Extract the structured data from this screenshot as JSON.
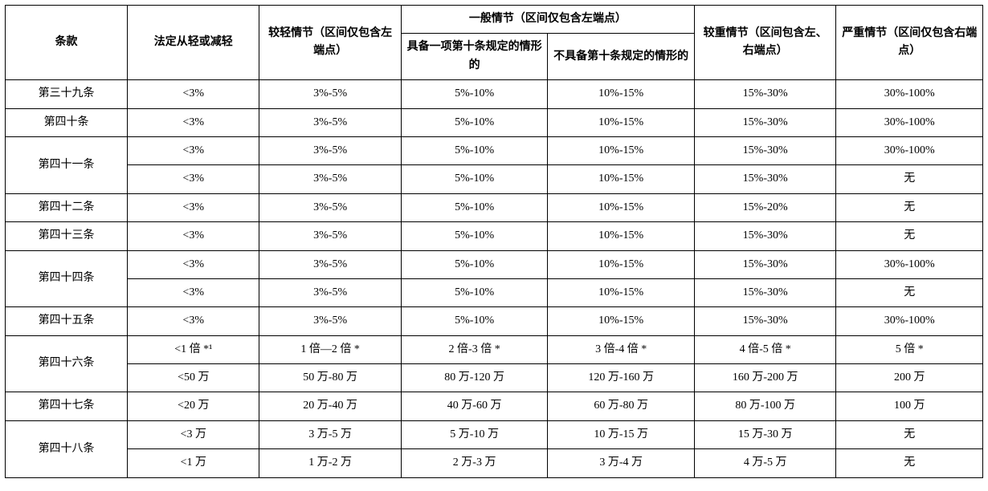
{
  "header": {
    "c1": "条款",
    "c2": "法定从轻或减轻",
    "c3": "较轻情节（区间仅包含左端点）",
    "c4_top": "一般情节（区间仅包含左端点）",
    "c4a": "具备一项第十条规定的情形的",
    "c4b": "不具备第十条规定的情形的",
    "c5": "较重情节（区间包含左、右端点）",
    "c6": "严重情节（区间仅包含右端点）"
  },
  "rows": [
    {
      "label": "第三十九条",
      "span": 1,
      "cells": [
        [
          "<3%",
          "3%-5%",
          "5%-10%",
          "10%-15%",
          "15%-30%",
          "30%-100%"
        ]
      ]
    },
    {
      "label": "第四十条",
      "span": 1,
      "cells": [
        [
          "<3%",
          "3%-5%",
          "5%-10%",
          "10%-15%",
          "15%-30%",
          "30%-100%"
        ]
      ]
    },
    {
      "label": "第四十一条",
      "span": 2,
      "cells": [
        [
          "<3%",
          "3%-5%",
          "5%-10%",
          "10%-15%",
          "15%-30%",
          "30%-100%"
        ],
        [
          "<3%",
          "3%-5%",
          "5%-10%",
          "10%-15%",
          "15%-30%",
          "无"
        ]
      ]
    },
    {
      "label": "第四十二条",
      "span": 1,
      "cells": [
        [
          "<3%",
          "3%-5%",
          "5%-10%",
          "10%-15%",
          "15%-20%",
          "无"
        ]
      ]
    },
    {
      "label": "第四十三条",
      "span": 1,
      "cells": [
        [
          "<3%",
          "3%-5%",
          "5%-10%",
          "10%-15%",
          "15%-30%",
          "无"
        ]
      ]
    },
    {
      "label": "第四十四条",
      "span": 2,
      "cells": [
        [
          "<3%",
          "3%-5%",
          "5%-10%",
          "10%-15%",
          "15%-30%",
          "30%-100%"
        ],
        [
          "<3%",
          "3%-5%",
          "5%-10%",
          "10%-15%",
          "15%-30%",
          "无"
        ]
      ]
    },
    {
      "label": "第四十五条",
      "span": 1,
      "cells": [
        [
          "<3%",
          "3%-5%",
          "5%-10%",
          "10%-15%",
          "15%-30%",
          "30%-100%"
        ]
      ]
    },
    {
      "label": "第四十六条",
      "span": 2,
      "cells": [
        [
          "<1 倍 *¹",
          "1 倍—2 倍 *",
          "2 倍-3 倍 *",
          "3 倍-4 倍 *",
          "4 倍-5 倍 *",
          "5 倍 *"
        ],
        [
          "<50 万",
          "50 万-80 万",
          "80 万-120 万",
          "120 万-160 万",
          "160 万-200 万",
          "200 万"
        ]
      ]
    },
    {
      "label": "第四十七条",
      "span": 1,
      "cells": [
        [
          "<20 万",
          "20 万-40 万",
          "40 万-60 万",
          "60 万-80 万",
          "80 万-100 万",
          "100 万"
        ]
      ]
    },
    {
      "label": "第四十八条",
      "span": 2,
      "cells": [
        [
          "<3 万",
          "3 万-5 万",
          "5 万-10 万",
          "10 万-15 万",
          "15 万-30 万",
          "无"
        ],
        [
          "<1 万",
          "1 万-2 万",
          "2 万-3 万",
          "3 万-4 万",
          "4 万-5 万",
          "无"
        ]
      ]
    }
  ],
  "style": {
    "font_size_pt": 14,
    "border_color": "#000000",
    "background_color": "#ffffff",
    "text_color": "#000000"
  }
}
